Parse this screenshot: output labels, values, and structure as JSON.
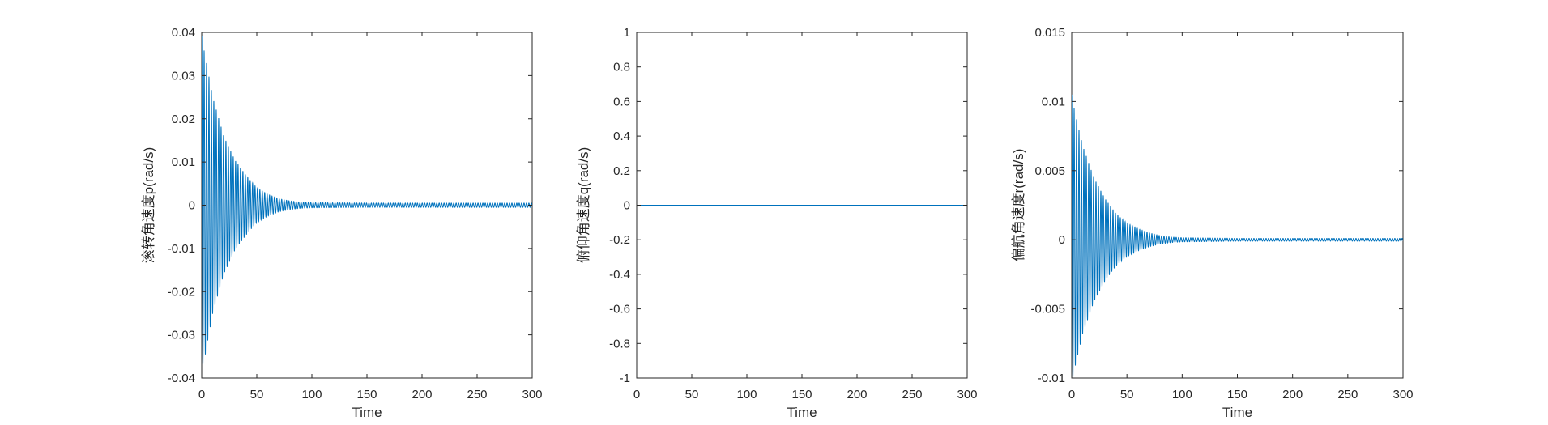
{
  "colors": {
    "series": "#0072BD",
    "axes": "#262626",
    "background": "#ffffff"
  },
  "chart_data": [
    {
      "type": "line",
      "title": "",
      "xlabel": "Time",
      "ylabel": "滚转角速度p(rad/s)",
      "xlim": [
        0,
        300
      ],
      "ylim": [
        -0.04,
        0.04
      ],
      "xticks": [
        0,
        50,
        100,
        150,
        200,
        250,
        300
      ],
      "xtick_labels": [
        "0",
        "50",
        "100",
        "150",
        "200",
        "250",
        "300"
      ],
      "yticks": [
        -0.04,
        -0.03,
        -0.02,
        -0.01,
        0,
        0.01,
        0.02,
        0.03,
        0.04
      ],
      "ytick_labels": [
        "-0.04",
        "-0.03",
        "-0.02",
        "-0.01",
        "0",
        "0.01",
        "0.02",
        "0.03",
        "0.04"
      ],
      "grid": false,
      "series": [
        {
          "oscillation": "damped",
          "period": 2.2,
          "envelope_t": [
            0,
            1,
            3,
            5,
            10,
            20,
            30,
            40,
            50,
            60,
            70,
            80,
            90,
            100,
            150,
            200,
            250,
            300
          ],
          "envelope_amplitude": [
            0.04,
            0.037,
            0.035,
            0.032,
            0.025,
            0.016,
            0.0105,
            0.007,
            0.004,
            0.0025,
            0.0015,
            0.001,
            0.0007,
            0.0006,
            0.0005,
            0.0005,
            0.0005,
            0.0005
          ]
        }
      ]
    },
    {
      "type": "line",
      "title": "",
      "xlabel": "Time",
      "ylabel": "俯仰角速度q(rad/s)",
      "xlim": [
        0,
        300
      ],
      "ylim": [
        -1,
        1
      ],
      "xticks": [
        0,
        50,
        100,
        150,
        200,
        250,
        300
      ],
      "xtick_labels": [
        "0",
        "50",
        "100",
        "150",
        "200",
        "250",
        "300"
      ],
      "yticks": [
        -1,
        -0.8,
        -0.6,
        -0.4,
        -0.2,
        0,
        0.2,
        0.4,
        0.6,
        0.8,
        1
      ],
      "ytick_labels": [
        "-1",
        "-0.8",
        "-0.6",
        "-0.4",
        "-0.2",
        "0",
        "0.2",
        "0.4",
        "0.6",
        "0.8",
        "1"
      ],
      "grid": false,
      "series": [
        {
          "x": [
            0,
            300
          ],
          "y": [
            0,
            0
          ]
        }
      ]
    },
    {
      "type": "line",
      "title": "",
      "xlabel": "Time",
      "ylabel": "偏航角速度r(rad/s)",
      "xlim": [
        0,
        300
      ],
      "ylim": [
        -0.01,
        0.015
      ],
      "xticks": [
        0,
        50,
        100,
        150,
        200,
        250,
        300
      ],
      "xtick_labels": [
        "0",
        "50",
        "100",
        "150",
        "200",
        "250",
        "300"
      ],
      "yticks": [
        -0.01,
        -0.005,
        0,
        0.005,
        0.01,
        0.015
      ],
      "ytick_labels": [
        "-0.01",
        "-0.005",
        "0",
        "0.005",
        "0.01",
        "0.015"
      ],
      "grid": false,
      "series": [
        {
          "oscillation": "damped",
          "period": 2.2,
          "envelope_t": [
            0,
            1,
            3,
            5,
            10,
            20,
            30,
            40,
            50,
            60,
            70,
            80,
            90,
            100,
            150,
            200,
            250,
            300
          ],
          "envelope_amplitude": [
            0.0105,
            0.01,
            0.0092,
            0.0085,
            0.0068,
            0.0045,
            0.003,
            0.0019,
            0.0012,
            0.0008,
            0.0005,
            0.0003,
            0.0002,
            0.00015,
            0.0001,
            0.0001,
            0.0001,
            0.0001
          ]
        }
      ]
    }
  ]
}
